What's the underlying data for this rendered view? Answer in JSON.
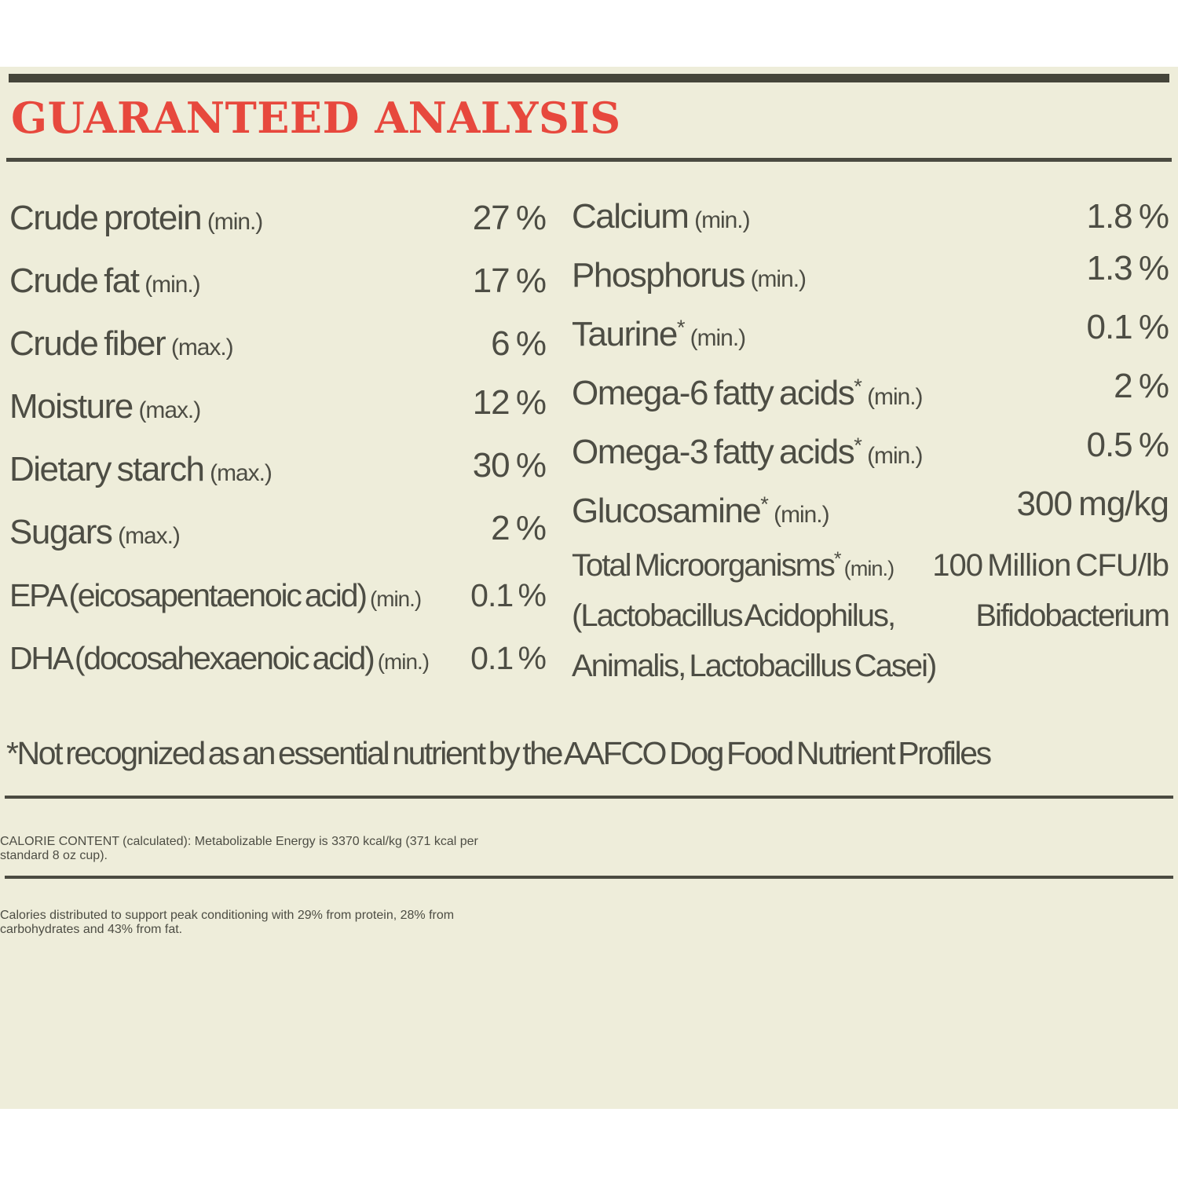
{
  "header": {
    "title": "GUARANTEED ANALYSIS"
  },
  "colors": {
    "accent_red": "#e7483d",
    "panel_background": "#eeedda",
    "text": "#4d4d44",
    "rule_dark": "#45453a"
  },
  "analysis": {
    "left": [
      {
        "name": "Crude protein",
        "sup": "",
        "qualifier": "(min.)",
        "value": "27 %"
      },
      {
        "name": "Crude fat",
        "sup": "",
        "qualifier": "(min.)",
        "value": "17 %"
      },
      {
        "name": "Crude fiber",
        "sup": "",
        "qualifier": "(max.)",
        "value": "6 %"
      },
      {
        "name": "Moisture",
        "sup": "",
        "qualifier": "(max.)",
        "value": "12 %"
      },
      {
        "name": "Dietary starch",
        "sup": "",
        "qualifier": "(max.)",
        "value": "30 %"
      },
      {
        "name": "Sugars",
        "sup": "",
        "qualifier": "(max.)",
        "value": "2 %"
      },
      {
        "name": "EPA (eicosapentaenoic acid)",
        "sup": "",
        "qualifier": "(min.)",
        "value": "0.1 %"
      },
      {
        "name": "DHA (docosahexaenoic acid)",
        "sup": "",
        "qualifier": "(min.)",
        "value": "0.1 %"
      }
    ],
    "right": [
      {
        "name": "Calcium",
        "sup": "",
        "qualifier": "(min.)",
        "value": "1.8 %"
      },
      {
        "name": "Phosphorus",
        "sup": "",
        "qualifier": "(min.)",
        "value": "1.3 %"
      },
      {
        "name": "Taurine",
        "sup": "*",
        "qualifier": "(min.)",
        "value": "0.1 %"
      },
      {
        "name": "Omega-6 fatty acids",
        "sup": "*",
        "qualifier": "(min.)",
        "value": "2 %"
      },
      {
        "name": "Omega-3 fatty acids",
        "sup": "*",
        "qualifier": "(min.)",
        "value": "0.5 %"
      },
      {
        "name": "Glucosamine",
        "sup": "*",
        "qualifier": "(min.)",
        "value": "300 mg/kg"
      }
    ],
    "microorganisms": {
      "name": "Total Microorganisms",
      "sup": "*",
      "qualifier": "(min.)",
      "value": "100 Million CFU/lb",
      "line2_left": "(Lactobacillus Acidophilus,",
      "line2_right": "Bifidobacterium",
      "line3": "Animalis, Lactobacillus Casei)"
    }
  },
  "footnote": "*Not recognized as an essential nutrient by the AAFCO Dog Food Nutrient Profiles",
  "calorie_content": {
    "lines": [
      "CALORIE CONTENT (calculated): Metabolizable Energy is 3370 kcal/kg (371 kcal per",
      "standard 8 oz cup)."
    ]
  },
  "calorie_distribution": {
    "lines": [
      "Calories distributed to support peak conditioning with 29% from protein, 28% from",
      "carbohydrates and 43% from fat."
    ]
  }
}
